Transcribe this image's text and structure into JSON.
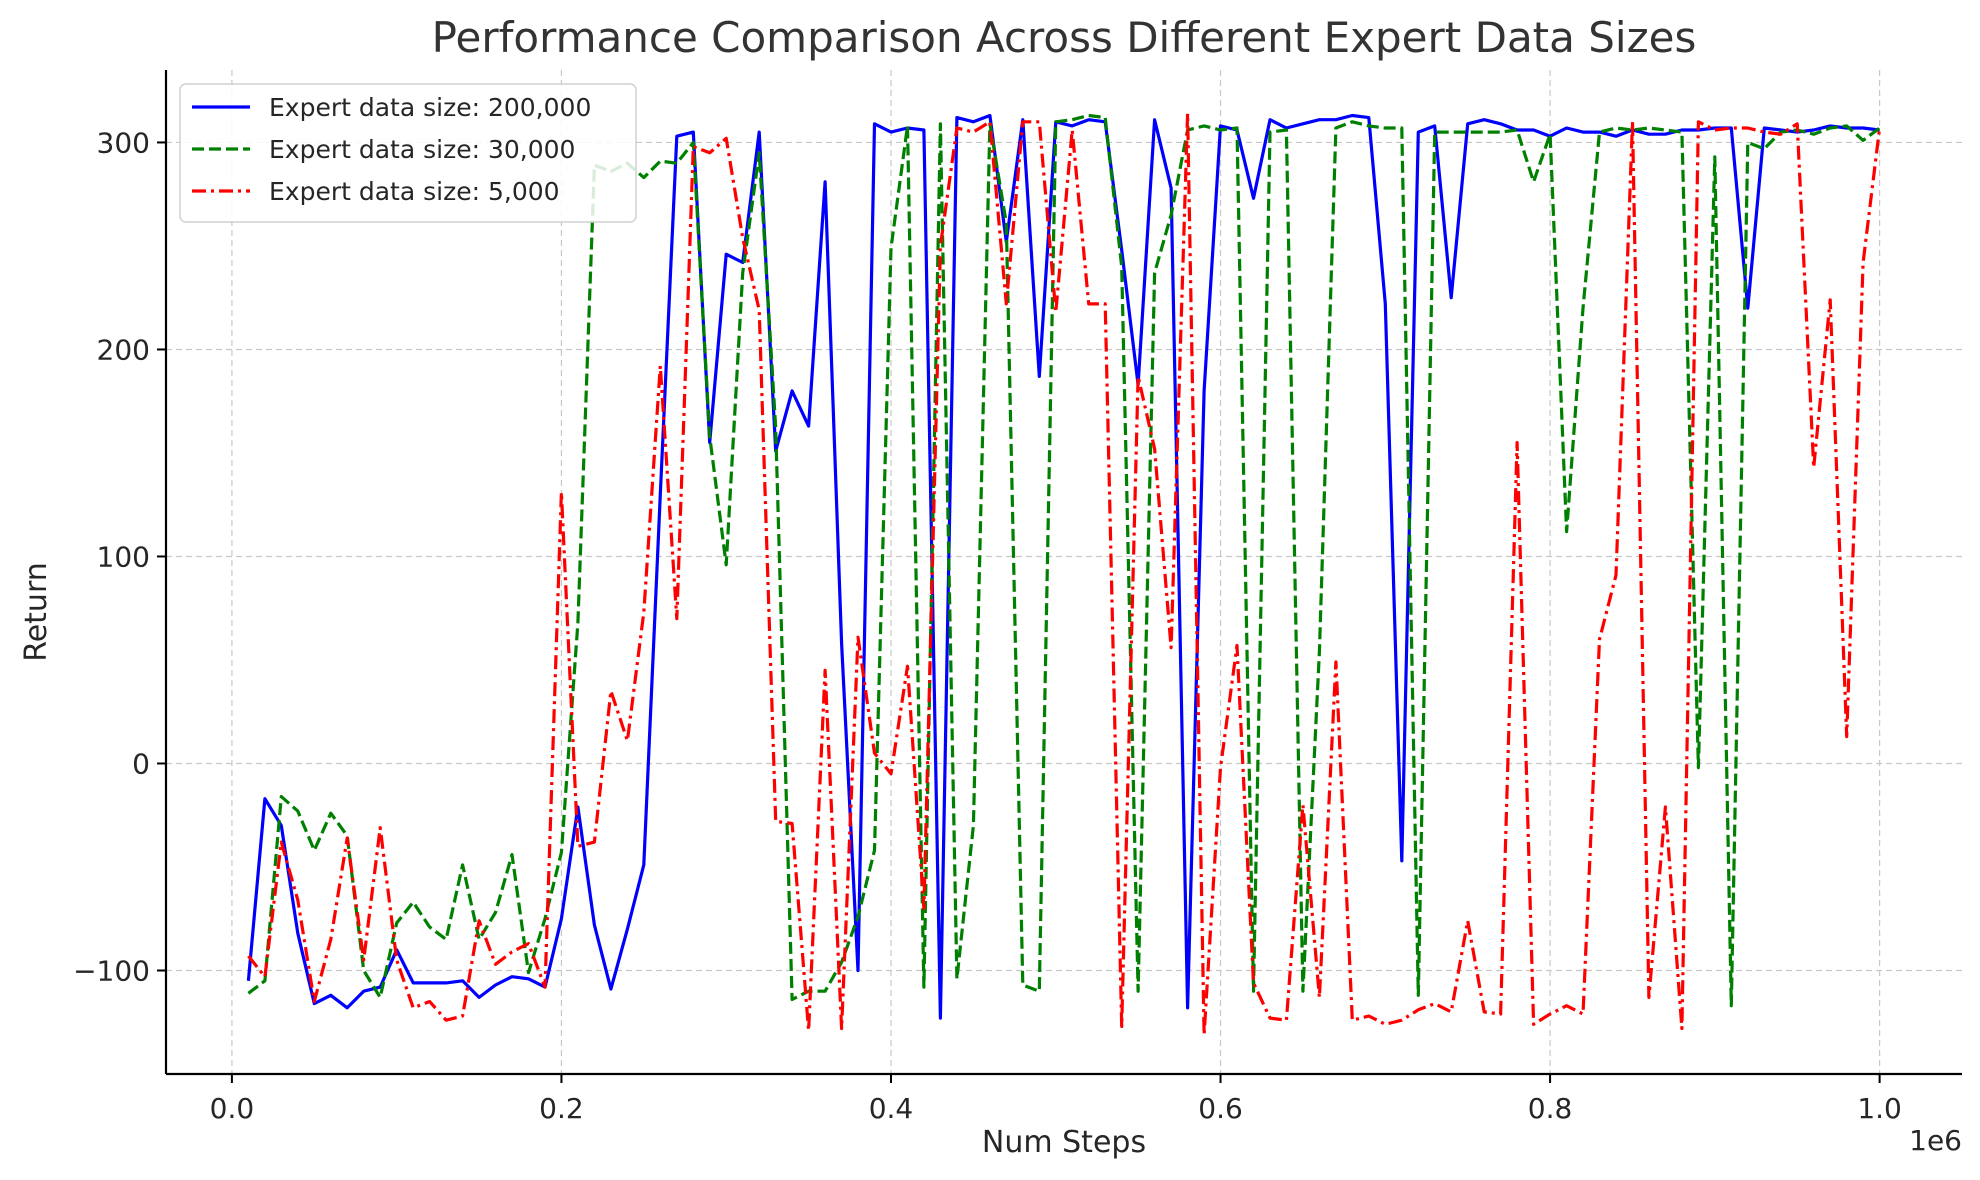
{
  "chart_data": {
    "type": "line",
    "title": "Performance Comparison Across Different Expert Data Sizes",
    "xlabel": "Num Steps",
    "ylabel": "Return",
    "x_offset_label": "1e6",
    "xlim": [
      -0.04,
      1.05
    ],
    "ylim": [
      -150,
      335
    ],
    "xticks": [
      0.0,
      0.2,
      0.4,
      0.6,
      0.8,
      1.0
    ],
    "xtick_labels": [
      "0.0",
      "0.2",
      "0.4",
      "0.6",
      "0.8",
      "1.0"
    ],
    "yticks": [
      -100,
      0,
      100,
      200,
      300
    ],
    "ytick_labels": [
      "−100",
      "0",
      "100",
      "200",
      "300"
    ],
    "grid": true,
    "legend_position": "upper-left",
    "x": [
      0.01,
      0.02,
      0.03,
      0.04,
      0.05,
      0.06,
      0.07,
      0.08,
      0.09,
      0.1,
      0.11,
      0.12,
      0.13,
      0.14,
      0.15,
      0.16,
      0.17,
      0.18,
      0.19,
      0.2,
      0.21,
      0.22,
      0.23,
      0.24,
      0.25,
      0.26,
      0.27,
      0.28,
      0.29,
      0.3,
      0.31,
      0.32,
      0.33,
      0.34,
      0.35,
      0.36,
      0.37,
      0.38,
      0.39,
      0.4,
      0.41,
      0.42,
      0.43,
      0.44,
      0.45,
      0.46,
      0.47,
      0.48,
      0.49,
      0.5,
      0.51,
      0.52,
      0.53,
      0.54,
      0.55,
      0.56,
      0.57,
      0.58,
      0.59,
      0.6,
      0.61,
      0.62,
      0.63,
      0.64,
      0.65,
      0.66,
      0.67,
      0.68,
      0.69,
      0.7,
      0.71,
      0.72,
      0.73,
      0.74,
      0.75,
      0.76,
      0.77,
      0.78,
      0.79,
      0.8,
      0.81,
      0.82,
      0.83,
      0.84,
      0.85,
      0.86,
      0.87,
      0.88,
      0.89,
      0.9,
      0.91,
      0.92,
      0.93,
      0.94,
      0.95,
      0.96,
      0.97,
      0.98,
      0.99,
      1.0
    ],
    "series": [
      {
        "name": "Expert data size: 200,000",
        "color": "#0000ff",
        "dash": "solid",
        "values": [
          -105,
          -17,
          -30,
          -82,
          -116,
          -112,
          -118,
          -110,
          -108,
          -90,
          -106,
          -106,
          -106,
          -105,
          -113,
          -107,
          -103,
          -104,
          -108,
          -75,
          -21,
          -78,
          -109,
          -80,
          -49,
          130,
          303,
          305,
          155,
          246,
          242,
          305,
          151,
          180,
          163,
          281,
          58,
          -100,
          309,
          305,
          307,
          306,
          -123,
          312,
          310,
          313,
          252,
          311,
          187,
          310,
          308,
          311,
          310,
          248,
          183,
          311,
          278,
          -118,
          180,
          308,
          306,
          273,
          311,
          307,
          309,
          311,
          311,
          313,
          312,
          222,
          -47,
          305,
          308,
          225,
          309,
          311,
          309,
          306,
          306,
          303,
          307,
          305,
          305,
          303,
          306,
          304,
          304,
          306,
          306,
          307,
          307,
          220,
          307,
          306,
          305,
          306,
          308,
          307,
          307,
          306
        ]
      },
      {
        "name": "Expert data size: 30,000",
        "color": "#008000",
        "dash": "dashed",
        "values": [
          -111,
          -105,
          -16,
          -23,
          -42,
          -24,
          -35,
          -100,
          -113,
          -77,
          -67,
          -79,
          -85,
          -49,
          -85,
          -72,
          -44,
          -101,
          -75,
          -43,
          68,
          289,
          286,
          290,
          283,
          291,
          290,
          300,
          158,
          96,
          237,
          295,
          162,
          -114,
          -110,
          -110,
          -96,
          -74,
          -42,
          249,
          308,
          -108,
          309,
          -104,
          -30,
          309,
          261,
          -107,
          -110,
          310,
          311,
          313,
          312,
          240,
          -110,
          237,
          265,
          306,
          308,
          306,
          307,
          -110,
          305,
          306,
          -110,
          54,
          307,
          310,
          308,
          307,
          307,
          -112,
          305,
          305,
          305,
          305,
          305,
          306,
          281,
          304,
          112,
          220,
          305,
          307,
          306,
          307,
          306,
          305,
          -2,
          293,
          -117,
          300,
          297,
          305,
          306,
          304,
          307,
          308,
          301,
          307
        ]
      },
      {
        "name": "Expert data size: 5,000",
        "color": "#ff0000",
        "dash": "dashdot",
        "values": [
          -93,
          -103,
          -38,
          -66,
          -115,
          -85,
          -36,
          -95,
          -31,
          -95,
          -118,
          -115,
          -124,
          -122,
          -76,
          -97,
          -91,
          -87,
          -108,
          131,
          -40,
          -38,
          35,
          11,
          73,
          192,
          70,
          298,
          295,
          302,
          254,
          219,
          -28,
          -29,
          -129,
          45,
          -128,
          61,
          5,
          -5,
          47,
          -70,
          250,
          307,
          305,
          310,
          222,
          310,
          310,
          218,
          306,
          222,
          222,
          -127,
          187,
          152,
          56,
          314,
          -131,
          -2,
          57,
          -106,
          -123,
          -124,
          -20,
          -113,
          49,
          -124,
          -122,
          -126,
          -124,
          -119,
          -116,
          -120,
          -76,
          -120,
          -121,
          155,
          -126,
          -121,
          -117,
          -121,
          60,
          91,
          310,
          -113,
          -21,
          -128,
          310,
          306,
          307,
          307,
          305,
          304,
          309,
          143,
          224,
          13,
          242,
          307
        ]
      }
    ]
  }
}
